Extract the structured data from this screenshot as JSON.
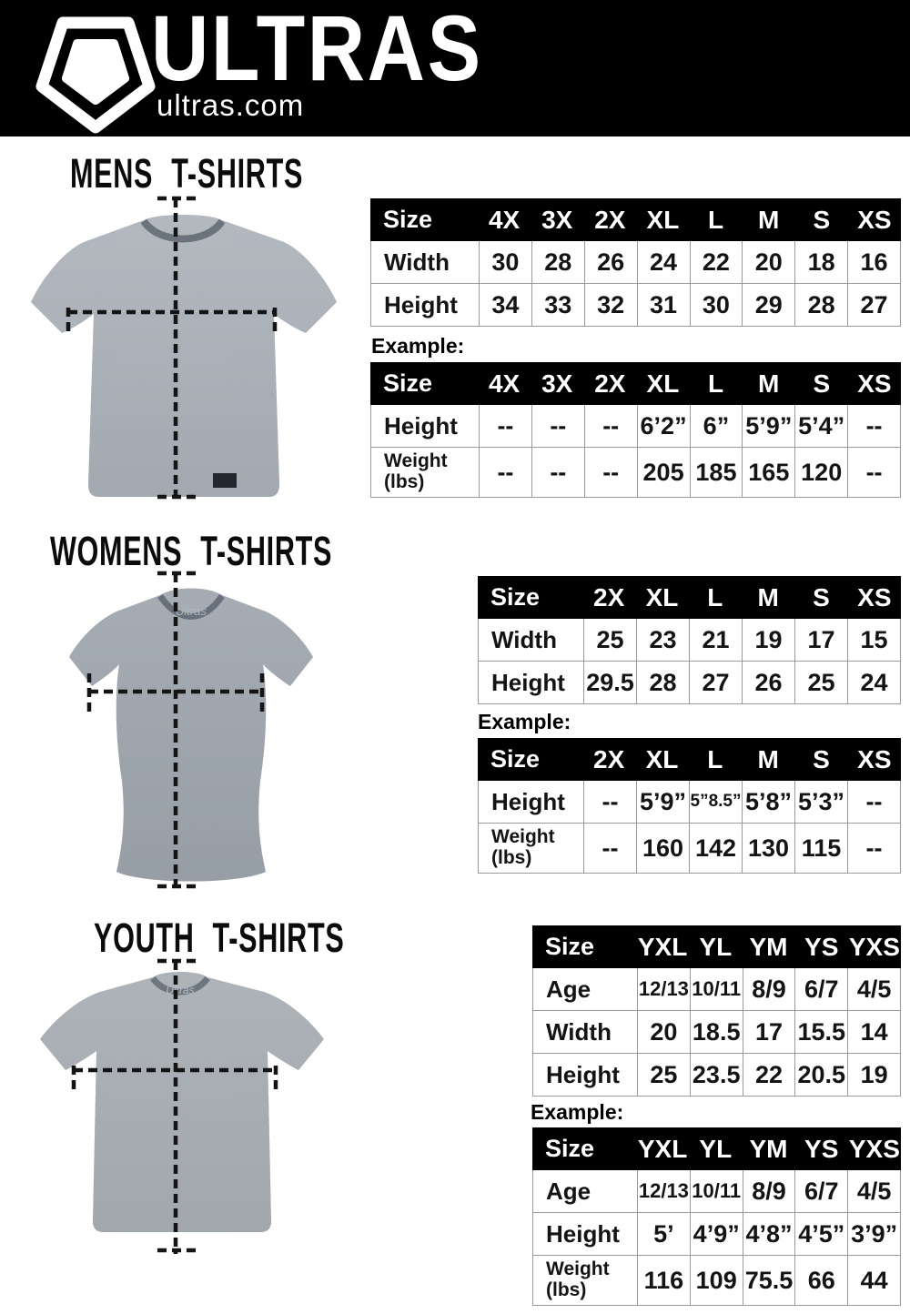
{
  "header": {
    "brand": "ULTRAS",
    "site": "ultras.com",
    "logo_icon": "pentagon-crest-icon",
    "bg_color": "#000000",
    "text_color": "#ffffff"
  },
  "colors": {
    "table_header_bg": "#000000",
    "table_header_text": "#ffffff",
    "table_border": "#9a9a9a",
    "dash_line": "#141414",
    "shirt_grey_mens": "#87909a",
    "shirt_grey_womens": "#7d8791",
    "shirt_grey_youth": "#868f96"
  },
  "sections": [
    {
      "title": "MENS T-SHIRTS",
      "example_label": "Example:",
      "size_table": {
        "header": [
          "Size",
          "4X",
          "3X",
          "2X",
          "XL",
          "L",
          "M",
          "S",
          "XS"
        ],
        "rows": [
          [
            "Width",
            "30",
            "28",
            "26",
            "24",
            "22",
            "20",
            "18",
            "16"
          ],
          [
            "Height",
            "34",
            "33",
            "32",
            "31",
            "30",
            "29",
            "28",
            "27"
          ]
        ]
      },
      "example_table": {
        "header": [
          "Size",
          "4X",
          "3X",
          "2X",
          "XL",
          "L",
          "M",
          "S",
          "XS"
        ],
        "rows": [
          [
            "Height",
            "--",
            "--",
            "--",
            "6’2”",
            "6”",
            "5’9”",
            "5’4”",
            "--"
          ],
          [
            "Weight\n(lbs)",
            "--",
            "--",
            "--",
            "205",
            "185",
            "165",
            "120",
            "--"
          ]
        ]
      }
    },
    {
      "title": "WOMENS T-SHIRTS",
      "example_label": "Example:",
      "size_table": {
        "header": [
          "Size",
          "2X",
          "XL",
          "L",
          "M",
          "S",
          "XS"
        ],
        "rows": [
          [
            "Width",
            "25",
            "23",
            "21",
            "19",
            "17",
            "15"
          ],
          [
            "Height",
            "29.5",
            "28",
            "27",
            "26",
            "25",
            "24"
          ]
        ]
      },
      "example_table": {
        "header": [
          "Size",
          "2X",
          "XL",
          "L",
          "M",
          "S",
          "XS"
        ],
        "rows": [
          [
            "Height",
            "--",
            "5’9”",
            "5”8.5”",
            "5’8”",
            "5’3”",
            "--"
          ],
          [
            "Weight\n(lbs)",
            "--",
            "160",
            "142",
            "130",
            "115",
            "--"
          ]
        ]
      }
    },
    {
      "title": "YOUTH T-SHIRTS",
      "example_label": "Example:",
      "size_table": {
        "header": [
          "Size",
          "YXL",
          "YL",
          "YM",
          "YS",
          "YXS"
        ],
        "rows": [
          [
            "Age",
            "12/13",
            "10/11",
            "8/9",
            "6/7",
            "4/5"
          ],
          [
            "Width",
            "20",
            "18.5",
            "17",
            "15.5",
            "14"
          ],
          [
            "Height",
            "25",
            "23.5",
            "22",
            "20.5",
            "19"
          ]
        ]
      },
      "example_table": {
        "header": [
          "Size",
          "YXL",
          "YL",
          "YM",
          "YS",
          "YXS"
        ],
        "rows": [
          [
            "Age",
            "12/13",
            "10/11",
            "8/9",
            "6/7",
            "4/5"
          ],
          [
            "Height",
            "5’",
            "4’9”",
            "4’8”",
            "4’5”",
            "3’9”"
          ],
          [
            "Weight\n(lbs)",
            "116",
            "109",
            "75.5",
            "66",
            "44"
          ]
        ]
      }
    }
  ]
}
